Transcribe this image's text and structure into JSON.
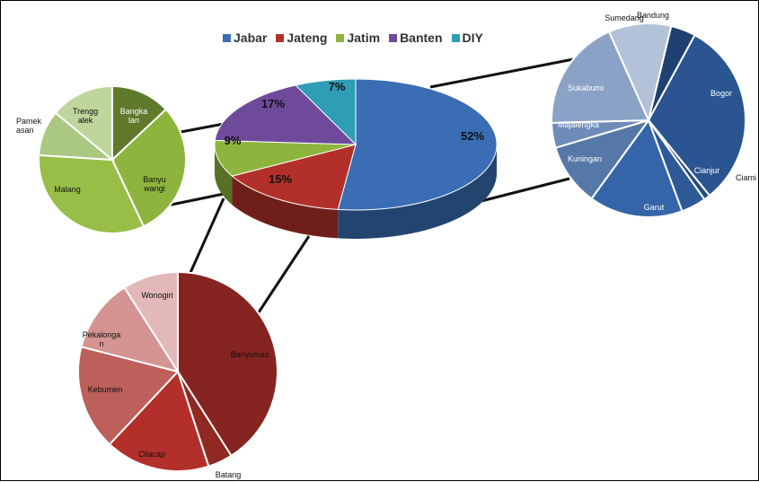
{
  "chart_data": {
    "type": "pie",
    "legend_position": "top",
    "main": {
      "categories": [
        "Jabar",
        "Jateng",
        "Jatim",
        "Banten",
        "DIY"
      ],
      "values": [
        52,
        15,
        9,
        17,
        7
      ],
      "labels": [
        "52%",
        "15%",
        "9%",
        "17%",
        "7%"
      ],
      "colors": [
        "#3a6db4",
        "#b3302a",
        "#8db43c",
        "#6f4a9a",
        "#2f9db6"
      ]
    },
    "breakdowns": [
      {
        "parent": "Jabar",
        "categories": [
          "Bandung",
          "Bogor",
          "Ciamis",
          "Cianjur",
          "Garut",
          "Kuningan",
          "Majalengka",
          "Sukabumi",
          "Sumedang"
        ],
        "values": [
          4,
          30,
          1,
          4,
          15,
          10,
          4,
          18,
          10
        ],
        "colors": [
          "#1f416f",
          "#2a5591",
          "#26497f",
          "#2d5a96",
          "#3565a8",
          "#5678a8",
          "#6f8cb8",
          "#8aa2c6",
          "#b3c2d8"
        ]
      },
      {
        "parent": "Jatim",
        "categories": [
          "Bangkalan",
          "Banyuwangi",
          "Malang",
          "Pamekasan",
          "Trenggalek"
        ],
        "values": [
          13,
          30,
          33,
          10,
          14
        ],
        "colors": [
          "#5f7a2b",
          "#8db43c",
          "#99be47",
          "#aac881",
          "#bed59c"
        ]
      },
      {
        "parent": "Jateng",
        "categories": [
          "Banyumas",
          "Batang",
          "Cilacap",
          "Kebumen",
          "Pekalongan",
          "Wonogiri"
        ],
        "values": [
          41,
          4,
          17,
          17,
          12,
          9
        ],
        "colors": [
          "#852420",
          "#902823",
          "#b3302a",
          "#bd5f5b",
          "#d49491",
          "#e2b9b8"
        ]
      }
    ]
  },
  "legend": [
    {
      "label": "Jabar",
      "color": "#3a6db4"
    },
    {
      "label": "Jateng",
      "color": "#b3302a"
    },
    {
      "label": "Jatim",
      "color": "#8db43c"
    },
    {
      "label": "Banten",
      "color": "#6f4a9a"
    },
    {
      "label": "DIY",
      "color": "#2f9db6"
    }
  ],
  "slice_labels": {
    "jabar": [
      {
        "text": "Bandung"
      },
      {
        "text": "Bogor"
      },
      {
        "text": "Ciami"
      },
      {
        "text": "Cianjur"
      },
      {
        "text": "Garut"
      },
      {
        "text": "Kuningan"
      },
      {
        "text": "Majalengka"
      },
      {
        "text": "Sukabumi"
      },
      {
        "text": "Sumedang"
      }
    ],
    "jatim": [
      {
        "text": "Bangka",
        "text2": "lan"
      },
      {
        "text": "Banyu",
        "text2": "wangi"
      },
      {
        "text": "Malang"
      },
      {
        "text": "Pamek",
        "text2": "asan"
      },
      {
        "text": "Trengg",
        "text2": "alek"
      }
    ],
    "jateng": [
      {
        "text": "Banyumas"
      },
      {
        "text": "Batang"
      },
      {
        "text": "Cilacap"
      },
      {
        "text": "Kebumen"
      },
      {
        "text": "Pekalonga",
        "text2": "n"
      },
      {
        "text": "Wonogiri"
      }
    ]
  }
}
